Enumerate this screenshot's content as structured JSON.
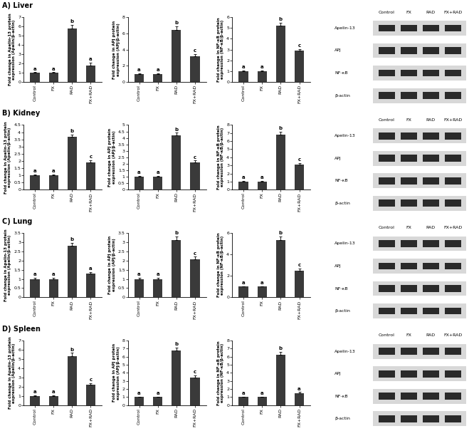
{
  "panels": [
    {
      "title": "A) Liver",
      "blot": {
        "lanes": [
          "Control",
          "FX",
          "RAD",
          "FX+RAD"
        ],
        "proteins": [
          "Apelin-13",
          "APJ",
          "NF-κB",
          "β-actin"
        ]
      }
    },
    {
      "title": "B) Kidney",
      "blot": {
        "lanes": [
          "Control",
          "FX",
          "RAD",
          "FX+RAD"
        ],
        "proteins": [
          "Apelin-13",
          "APJ",
          "NF-κB",
          "β-actin"
        ]
      }
    },
    {
      "title": "C) Lung",
      "blot": {
        "lanes": [
          "Control",
          "FX",
          "RAD",
          "FX+RAD"
        ],
        "proteins": [
          "Apelin-13",
          "APJ",
          "NF-κB",
          "β-actin"
        ]
      }
    },
    {
      "title": "D) Spleen",
      "blot": {
        "lanes": [
          "Control",
          "FX",
          "RAD",
          "FX+RAD"
        ],
        "proteins": [
          "Apelin-13",
          "APJ",
          "NF-κB",
          "β-actin"
        ]
      }
    }
  ],
  "chart_data": [
    {
      "type": "bar",
      "ylabel": "Fold change in Apelin-13 protein expression (Apelin/β-actin)",
      "categories": [
        "Control",
        "FX",
        "RAD",
        "FX+RAD"
      ],
      "values": [
        1,
        1,
        5.8,
        1.8
      ],
      "errors": [
        0.05,
        0.05,
        0.35,
        0.3
      ],
      "annotations": [
        "a",
        "a",
        "b",
        "a"
      ],
      "ylim": [
        0,
        7
      ],
      "yticks": [
        0,
        1,
        2,
        3,
        4,
        5,
        6,
        7
      ],
      "color": "#3a3a3a"
    },
    {
      "type": "bar",
      "ylabel": "Fold change in APJ protein expression (APJ/β-actin)",
      "categories": [
        "Control",
        "FX",
        "RAD",
        "FX+RAD"
      ],
      "values": [
        1,
        1,
        6.4,
        3.2
      ],
      "errors": [
        0.05,
        0.05,
        0.5,
        0.25
      ],
      "annotations": [
        "a",
        "a",
        "b",
        "c"
      ],
      "ylim": [
        0,
        8
      ],
      "yticks": [
        0,
        2,
        4,
        6,
        8
      ],
      "color": "#3a3a3a"
    },
    {
      "type": "bar",
      "ylabel": "Fold change in NF-κB protein expression (NF-κB/β-actin)",
      "categories": [
        "Control",
        "FX",
        "RAD",
        "FX+RAD"
      ],
      "values": [
        1,
        1,
        5.2,
        2.9
      ],
      "errors": [
        0.05,
        0.05,
        0.3,
        0.15
      ],
      "annotations": [
        "a",
        "a",
        "b",
        "c"
      ],
      "ylim": [
        0,
        6
      ],
      "yticks": [
        0,
        1,
        2,
        3,
        4,
        5,
        6
      ],
      "color": "#3a3a3a"
    },
    {
      "type": "bar",
      "ylabel": "Fold change in Apelin-13 protein expression (Apelin/β-actin)",
      "categories": [
        "Control",
        "FX",
        "RAD",
        "FX+RAD"
      ],
      "values": [
        1,
        1,
        3.7,
        1.9
      ],
      "errors": [
        0.05,
        0.05,
        0.15,
        0.15
      ],
      "annotations": [
        "a",
        "a",
        "b",
        "c"
      ],
      "ylim": [
        0,
        4.5
      ],
      "yticks": [
        0,
        0.5,
        1,
        1.5,
        2,
        2.5,
        3,
        3.5,
        4,
        4.5
      ],
      "color": "#3a3a3a"
    },
    {
      "type": "bar",
      "ylabel": "Fold change in APJ protein expression (APJ/β-actin)",
      "categories": [
        "Control",
        "FX",
        "RAD",
        "FX+RAD"
      ],
      "values": [
        1,
        1,
        4.2,
        2.1
      ],
      "errors": [
        0.05,
        0.05,
        0.2,
        0.15
      ],
      "annotations": [
        "a",
        "a",
        "b",
        "c"
      ],
      "ylim": [
        0,
        5
      ],
      "yticks": [
        0,
        0.5,
        1,
        1.5,
        2,
        2.5,
        3,
        3.5,
        4,
        4.5,
        5
      ],
      "color": "#3a3a3a"
    },
    {
      "type": "bar",
      "ylabel": "Fold change in NF-κB protein expression (NF-κB/β-actin)",
      "categories": [
        "Control",
        "FX",
        "RAD",
        "FX+RAD"
      ],
      "values": [
        1,
        1,
        6.8,
        3.1
      ],
      "errors": [
        0.1,
        0.1,
        0.35,
        0.2
      ],
      "annotations": [
        "a",
        "a",
        "b",
        "c"
      ],
      "ylim": [
        0,
        8
      ],
      "yticks": [
        0,
        1,
        2,
        3,
        4,
        5,
        6,
        7,
        8
      ],
      "color": "#3a3a3a"
    },
    {
      "type": "bar",
      "ylabel": "Fold change in Apelin-13 protein expression (Apelin/β-actin)",
      "categories": [
        "Control",
        "FX",
        "RAD",
        "FX+RAD"
      ],
      "values": [
        1,
        1,
        2.8,
        1.3
      ],
      "errors": [
        0.05,
        0.05,
        0.15,
        0.08
      ],
      "annotations": [
        "a",
        "a",
        "b",
        "a"
      ],
      "ylim": [
        0,
        3.5
      ],
      "yticks": [
        0,
        0.5,
        1,
        1.5,
        2,
        2.5,
        3,
        3.5
      ],
      "color": "#3a3a3a"
    },
    {
      "type": "bar",
      "ylabel": "Fold change in APJ protein expression (APJ/β-actin)",
      "categories": [
        "Control",
        "FX",
        "RAD",
        "FX+RAD"
      ],
      "values": [
        1,
        1,
        3.1,
        2.05
      ],
      "errors": [
        0.05,
        0.05,
        0.2,
        0.15
      ],
      "annotations": [
        "a",
        "a",
        "b",
        "c"
      ],
      "ylim": [
        0,
        3.5
      ],
      "yticks": [
        0,
        0.5,
        1,
        1.5,
        2,
        2.5,
        3,
        3.5
      ],
      "color": "#3a3a3a"
    },
    {
      "type": "bar",
      "ylabel": "Fold change in NF-κB protein expression (NF-κB/β-actin)",
      "categories": [
        "Control",
        "FX",
        "RAD",
        "FX+RAD"
      ],
      "values": [
        1,
        1,
        5.3,
        2.5
      ],
      "errors": [
        0.05,
        0.05,
        0.35,
        0.2
      ],
      "annotations": [
        "a",
        "a",
        "b",
        "c"
      ],
      "ylim": [
        0,
        6
      ],
      "yticks": [
        0,
        2,
        4,
        6
      ],
      "color": "#3a3a3a"
    },
    {
      "type": "bar",
      "ylabel": "Fold change in Apelin-13 protein expression (Apelin/β-actin)",
      "categories": [
        "Control",
        "FX",
        "RAD",
        "FX+RAD"
      ],
      "values": [
        1,
        1,
        5.3,
        2.2
      ],
      "errors": [
        0.05,
        0.05,
        0.35,
        0.15
      ],
      "annotations": [
        "a",
        "a",
        "b",
        "c"
      ],
      "ylim": [
        0,
        7
      ],
      "yticks": [
        0,
        1,
        2,
        3,
        4,
        5,
        6,
        7
      ],
      "color": "#3a3a3a"
    },
    {
      "type": "bar",
      "ylabel": "Fold change in APJ protein expression (APJ/β-actin)",
      "categories": [
        "Control",
        "FX",
        "RAD",
        "FX+RAD"
      ],
      "values": [
        1,
        1,
        6.8,
        3.4
      ],
      "errors": [
        0.05,
        0.05,
        0.35,
        0.25
      ],
      "annotations": [
        "a",
        "a",
        "b",
        "c"
      ],
      "ylim": [
        0,
        8
      ],
      "yticks": [
        0,
        1,
        2,
        3,
        4,
        5,
        6,
        7,
        8
      ],
      "color": "#3a3a3a"
    },
    {
      "type": "bar",
      "ylabel": "Fold change in NF-κB protein expression (NF-κB/β-actin)",
      "categories": [
        "Control",
        "FX",
        "RAD",
        "FX+RAD"
      ],
      "values": [
        1,
        1,
        6.2,
        1.5
      ],
      "errors": [
        0.05,
        0.05,
        0.4,
        0.12
      ],
      "annotations": [
        "a",
        "a",
        "b",
        "a"
      ],
      "ylim": [
        0,
        8
      ],
      "yticks": [
        0,
        1,
        2,
        3,
        4,
        5,
        6,
        7,
        8
      ],
      "color": "#3a3a3a"
    }
  ]
}
